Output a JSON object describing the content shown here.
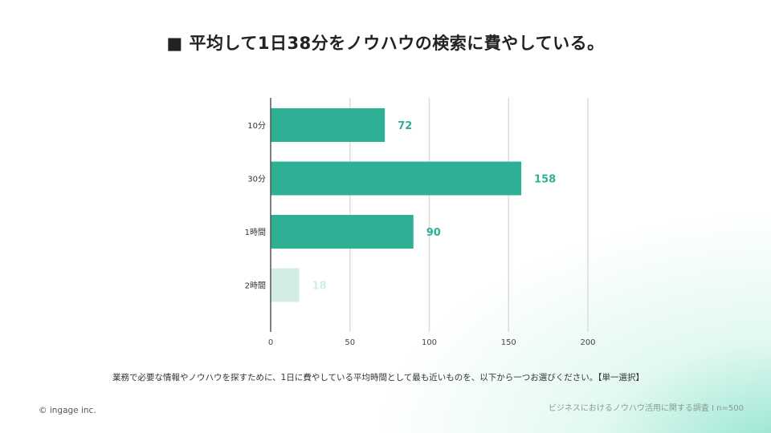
{
  "title": "■ 平均して1日38分をノウハウの検索に費やしている。",
  "chart_data": {
    "type": "bar",
    "orientation": "horizontal",
    "categories": [
      "10分",
      "30分",
      "1時間",
      "2時間"
    ],
    "values": [
      72,
      158,
      90,
      18
    ],
    "data_labels": [
      "72",
      "158",
      "90",
      "18"
    ],
    "xlim": [
      0,
      200
    ],
    "xticks": [
      0,
      50,
      100,
      150,
      200
    ],
    "grid": true,
    "colors": {
      "bar": "#2fb095",
      "bar_faded": "#d3ede6",
      "label": "#2fb095",
      "label_faded": "#cfeee6"
    }
  },
  "footer": {
    "question": "業務で必要な情報やノウハウを探すために、1日に費やしている平均時間として最も近いものを、以下から一つお選びください。【単一選択】",
    "copyright": "© ingage inc.",
    "source": "ビジネスにおけるノウハウ活用に関する調査 I n=500"
  }
}
